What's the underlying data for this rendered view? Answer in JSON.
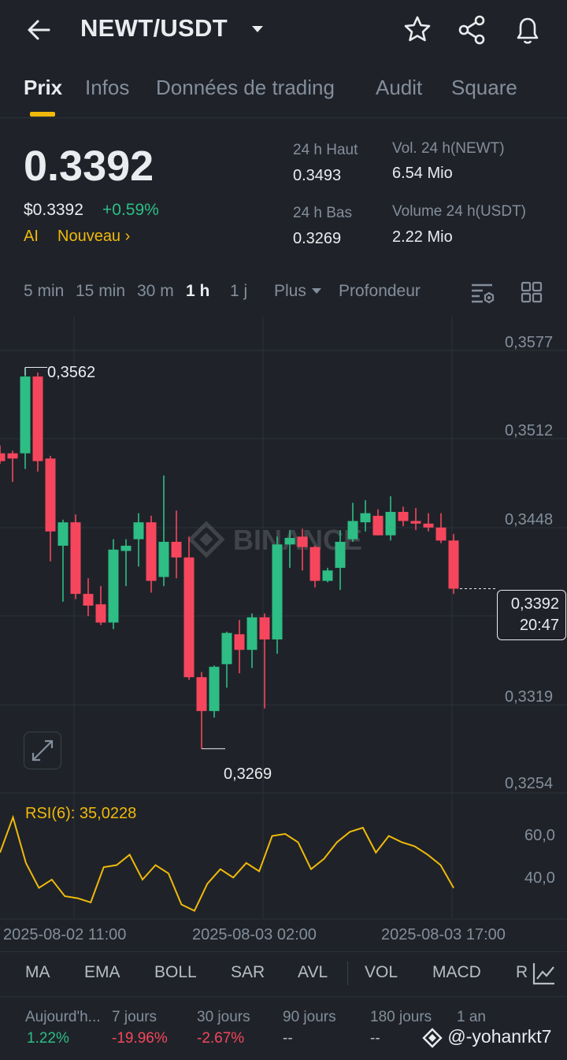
{
  "header": {
    "pair": "NEWT/USDT"
  },
  "tabs": [
    "Prix",
    "Infos",
    "Données de trading",
    "Audit",
    "Square"
  ],
  "price": {
    "last": "0.3392",
    "usd": "$0.3392",
    "change": "+0.59%",
    "ai_tag": "AI",
    "nouveau": "Nouveau"
  },
  "stats": {
    "high_label": "24 h Haut",
    "high_value": "0.3493",
    "low_label": "24 h Bas",
    "low_value": "0.3269",
    "vol_base_label": "Vol. 24 h(NEWT)",
    "vol_base_value": "6.54 Mio",
    "vol_quote_label": "Volume 24 h(USDT)",
    "vol_quote_value": "2.22 Mio"
  },
  "intervals": {
    "items": [
      "5 min",
      "15 min",
      "30 m",
      "1 h",
      "1 j"
    ],
    "active": "1 h",
    "more": "Plus",
    "depth": "Profondeur"
  },
  "chart_data": {
    "type": "candlestick",
    "interval": "1h",
    "y_ticks": [
      "0,3577",
      "0,3512",
      "0,3448",
      "0,3319",
      "0,3254"
    ],
    "ylim": [
      0.3235,
      0.3595
    ],
    "high_marker": "0,3562",
    "low_marker": "0,3269",
    "current_price": "0,3392",
    "countdown": "20:47",
    "watermark": "BINANCE",
    "x_ticks": [
      "2025-08-02 11:00",
      "2025-08-03 02:00",
      "2025-08-03 17:00"
    ],
    "candles": [
      {
        "o": 0.3496,
        "h": 0.3502,
        "l": 0.3488,
        "c": 0.349
      },
      {
        "o": 0.3496,
        "h": 0.3498,
        "l": 0.3474,
        "c": 0.3492
      },
      {
        "o": 0.3496,
        "h": 0.3562,
        "l": 0.3484,
        "c": 0.3555
      },
      {
        "o": 0.3555,
        "h": 0.3558,
        "l": 0.3482,
        "c": 0.349
      },
      {
        "o": 0.3492,
        "h": 0.3494,
        "l": 0.3413,
        "c": 0.3436
      },
      {
        "o": 0.3425,
        "h": 0.3445,
        "l": 0.3382,
        "c": 0.3443
      },
      {
        "o": 0.3443,
        "h": 0.3449,
        "l": 0.3384,
        "c": 0.3388
      },
      {
        "o": 0.3388,
        "h": 0.34,
        "l": 0.3371,
        "c": 0.3379
      },
      {
        "o": 0.338,
        "h": 0.3394,
        "l": 0.3364,
        "c": 0.3366
      },
      {
        "o": 0.3366,
        "h": 0.343,
        "l": 0.3361,
        "c": 0.3422
      },
      {
        "o": 0.3421,
        "h": 0.343,
        "l": 0.3394,
        "c": 0.3425
      },
      {
        "o": 0.343,
        "h": 0.345,
        "l": 0.3409,
        "c": 0.3443
      },
      {
        "o": 0.3443,
        "h": 0.3448,
        "l": 0.3389,
        "c": 0.3398
      },
      {
        "o": 0.3401,
        "h": 0.3479,
        "l": 0.3394,
        "c": 0.3428
      },
      {
        "o": 0.3428,
        "h": 0.3452,
        "l": 0.34,
        "c": 0.3416
      },
      {
        "o": 0.3416,
        "h": 0.3432,
        "l": 0.3322,
        "c": 0.3324
      },
      {
        "o": 0.3324,
        "h": 0.3328,
        "l": 0.3269,
        "c": 0.3298
      },
      {
        "o": 0.3298,
        "h": 0.3333,
        "l": 0.3293,
        "c": 0.3332
      },
      {
        "o": 0.3334,
        "h": 0.3359,
        "l": 0.3316,
        "c": 0.3358
      },
      {
        "o": 0.3357,
        "h": 0.3368,
        "l": 0.3327,
        "c": 0.3345
      },
      {
        "o": 0.3345,
        "h": 0.3373,
        "l": 0.3331,
        "c": 0.337
      },
      {
        "o": 0.337,
        "h": 0.3373,
        "l": 0.33,
        "c": 0.3353
      },
      {
        "o": 0.3353,
        "h": 0.3432,
        "l": 0.3342,
        "c": 0.3426
      },
      {
        "o": 0.3426,
        "h": 0.3437,
        "l": 0.3408,
        "c": 0.3431
      },
      {
        "o": 0.3432,
        "h": 0.3438,
        "l": 0.3406,
        "c": 0.3424
      },
      {
        "o": 0.3424,
        "h": 0.3425,
        "l": 0.3393,
        "c": 0.3398
      },
      {
        "o": 0.3398,
        "h": 0.3408,
        "l": 0.3397,
        "c": 0.3406
      },
      {
        "o": 0.3408,
        "h": 0.3437,
        "l": 0.3391,
        "c": 0.3428
      },
      {
        "o": 0.343,
        "h": 0.3458,
        "l": 0.3428,
        "c": 0.3444
      },
      {
        "o": 0.3443,
        "h": 0.346,
        "l": 0.3436,
        "c": 0.345
      },
      {
        "o": 0.3448,
        "h": 0.3453,
        "l": 0.3433,
        "c": 0.3433
      },
      {
        "o": 0.3433,
        "h": 0.3463,
        "l": 0.3429,
        "c": 0.3451
      },
      {
        "o": 0.3451,
        "h": 0.3455,
        "l": 0.344,
        "c": 0.3444
      },
      {
        "o": 0.3444,
        "h": 0.3454,
        "l": 0.3437,
        "c": 0.3442
      },
      {
        "o": 0.3442,
        "h": 0.345,
        "l": 0.3436,
        "c": 0.3439
      },
      {
        "o": 0.3439,
        "h": 0.345,
        "l": 0.3427,
        "c": 0.3429
      },
      {
        "o": 0.3429,
        "h": 0.3434,
        "l": 0.3388,
        "c": 0.3392
      }
    ],
    "rsi": {
      "label": "RSI(6): 35,0228",
      "y_ticks": [
        "60,0",
        "40,0"
      ],
      "values": [
        52,
        69,
        47,
        35,
        39,
        31,
        30,
        28,
        45,
        46,
        51,
        39,
        46,
        42,
        27,
        24,
        37,
        44,
        40,
        47,
        43,
        60,
        61,
        57,
        44,
        49,
        57,
        62,
        64,
        52,
        60,
        57,
        55,
        51,
        46,
        35
      ]
    }
  },
  "indicators": [
    "MA",
    "EMA",
    "BOLL",
    "SAR",
    "AVL",
    "VOL",
    "MACD",
    "R"
  ],
  "performance": [
    {
      "label": "Aujourd'h...",
      "value": "1.22%",
      "tone": "pos"
    },
    {
      "label": "7 jours",
      "value": "-19.96%",
      "tone": "neg"
    },
    {
      "label": "30 jours",
      "value": "-2.67%",
      "tone": "neg"
    },
    {
      "label": "90 jours",
      "value": "--",
      "tone": "neu"
    },
    {
      "label": "180 jours",
      "value": "--",
      "tone": "neu"
    },
    {
      "label": "1 an",
      "value": "--",
      "tone": "neu"
    }
  ],
  "watermark_user": "@-yohanrkt7",
  "colors": {
    "up": "#2ebd85",
    "down": "#f6465d",
    "accent": "#f0b90b",
    "bg": "#1f2329"
  }
}
